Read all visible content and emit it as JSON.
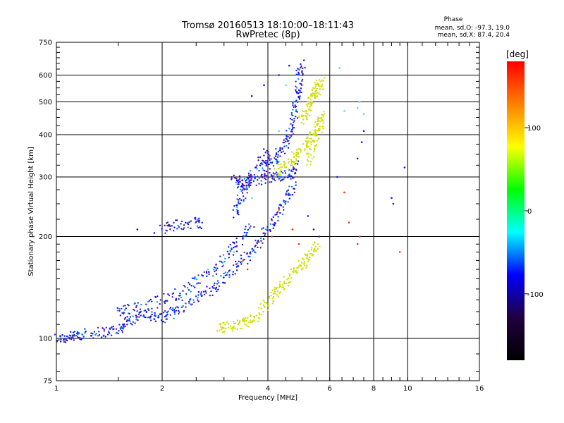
{
  "chart_data": {
    "type": "scatter",
    "title": "Tromsø 20160513 18:10:00–18:11:43",
    "subtitle": "RwPretec (8p)",
    "xlabel": "Frequency [MHz]",
    "ylabel": "Stationary phase Virtual Height [km]",
    "x_scale": "log",
    "y_scale": "log",
    "xlim": [
      1,
      16
    ],
    "ylim": [
      75,
      750
    ],
    "x_ticks": [
      1,
      2,
      4,
      6,
      8,
      10,
      16
    ],
    "y_ticks": [
      75,
      100,
      200,
      300,
      400,
      500,
      600,
      750
    ],
    "grid": true,
    "phase_box": {
      "title": "Phase",
      "line_o": "mean, sd,O: -97.3, 19.0",
      "line_x": "mean, sd,X: 87.4, 20.4"
    },
    "colorbar": {
      "label": "[deg]",
      "range": [
        -180,
        180
      ],
      "ticks": [
        100,
        0,
        -100
      ],
      "colors": [
        "#ff0000",
        "#ff8000",
        "#ffff00",
        "#00ff00",
        "#00ffff",
        "#0000ff",
        "#200040",
        "#000000"
      ]
    },
    "series": [
      {
        "phase_deg": -100,
        "color": "#1010ff",
        "traces": [
          {
            "x": [
              1.0,
              1.05,
              1.1,
              1.15,
              1.2,
              1.3,
              1.4,
              1.5,
              1.55
            ],
            "y": [
              100,
              100,
              101,
              102,
              103,
              104,
              105,
              106,
              108
            ]
          },
          {
            "x": [
              1.55,
              1.6,
              1.7,
              1.8,
              1.9,
              2.0,
              2.1,
              2.2,
              2.4,
              2.6,
              2.8,
              3.0,
              3.2,
              3.4,
              3.6,
              3.8,
              4.0,
              4.2,
              4.4,
              4.6,
              4.8
            ],
            "y": [
              110,
              113,
              116,
              118,
              116,
              115,
              118,
              122,
              128,
              135,
              140,
              150,
              160,
              170,
              180,
              195,
              210,
              225,
              245,
              265,
              290
            ]
          },
          {
            "x": [
              3.2,
              3.3,
              3.4,
              3.5,
              3.6,
              3.8,
              4.0,
              4.2,
              4.4,
              4.6,
              4.7,
              4.8
            ],
            "y": [
              300,
              290,
              285,
              288,
              292,
              295,
              298,
              300,
              302,
              305,
              310,
              330
            ]
          },
          {
            "x": [
              3.9,
              4.0,
              4.2,
              4.4,
              4.5,
              4.6,
              4.7,
              4.8,
              4.85,
              4.9,
              4.95,
              5.0
            ],
            "y": [
              320,
              330,
              340,
              360,
              380,
              400,
              440,
              480,
              520,
              560,
              610,
              650
            ]
          },
          {
            "x": [
              1.5,
              1.6,
              1.8,
              2.0,
              2.2,
              2.4,
              2.6,
              2.8,
              3.0,
              3.2,
              3.4,
              3.6
            ],
            "y": [
              120,
              122,
              125,
              130,
              135,
              142,
              150,
              160,
              172,
              185,
              200,
              215
            ]
          },
          {
            "x": [
              3.2,
              3.3,
              3.4,
              3.6,
              3.8,
              4.0
            ],
            "y": [
              230,
              250,
              270,
              300,
              330,
              360
            ]
          },
          {
            "x": [
              2.0,
              2.1,
              2.3,
              2.5,
              2.6
            ],
            "y": [
              210,
              215,
              218,
              220,
              218
            ]
          },
          {
            "x": [
              1.7,
              1.9,
              3.6,
              3.9,
              4.3,
              4.6,
              5.2,
              5.4,
              5.6,
              6.3,
              7.2,
              7.4,
              7.5,
              9.0,
              9.1,
              9.8
            ],
            "y": [
              210,
              205,
              520,
              560,
              600,
              640,
              230,
              210,
              200,
              300,
              340,
              380,
              410,
              260,
              250,
              320
            ]
          }
        ]
      },
      {
        "phase_deg": 90,
        "color": "#d0e000",
        "traces": [
          {
            "x": [
              2.9,
              3.0,
              3.2,
              3.4,
              3.6,
              3.8,
              4.0,
              4.2,
              4.4,
              4.6,
              4.8,
              5.0,
              5.2,
              5.4,
              5.5
            ],
            "y": [
              108,
              108,
              109,
              110,
              113,
              120,
              128,
              135,
              142,
              150,
              158,
              165,
              172,
              180,
              190
            ]
          },
          {
            "x": [
              4.2,
              4.4,
              4.6,
              4.8,
              5.0,
              5.2,
              5.4,
              5.6,
              5.7
            ],
            "y": [
              310,
              320,
              330,
              345,
              360,
              380,
              400,
              430,
              470
            ]
          },
          {
            "x": [
              5.0,
              5.1,
              5.2,
              5.3,
              5.4,
              5.5,
              5.6,
              5.7
            ],
            "y": [
              440,
              460,
              480,
              500,
              520,
              540,
              560,
              580
            ]
          },
          {
            "x": [
              5.2,
              5.35,
              5.5,
              5.6,
              5.65
            ],
            "y": [
              330,
              360,
              390,
              420,
              450
            ]
          }
        ]
      },
      {
        "phase_deg": 30,
        "color": "#40e0ff",
        "traces": [
          {
            "x": [
              2.5,
              2.7,
              3.2,
              3.4,
              3.6,
              4.3,
              4.5,
              6.4,
              6.6,
              7.2,
              7.3,
              7.5
            ],
            "y": [
              150,
              160,
              180,
              170,
              260,
              410,
              560,
              630,
              470,
              480,
              500,
              460
            ]
          }
        ]
      },
      {
        "phase_deg": 160,
        "color": "#ff3000",
        "traces": [
          {
            "x": [
              3.4,
              3.5,
              4.1,
              4.3,
              4.7,
              4.9,
              5.0,
              6.6,
              6.8,
              7.2,
              7.3,
              9.5
            ],
            "y": [
              170,
              160,
              200,
              240,
              210,
              190,
              560,
              270,
              220,
              190,
              200,
              180
            ]
          }
        ]
      }
    ]
  }
}
